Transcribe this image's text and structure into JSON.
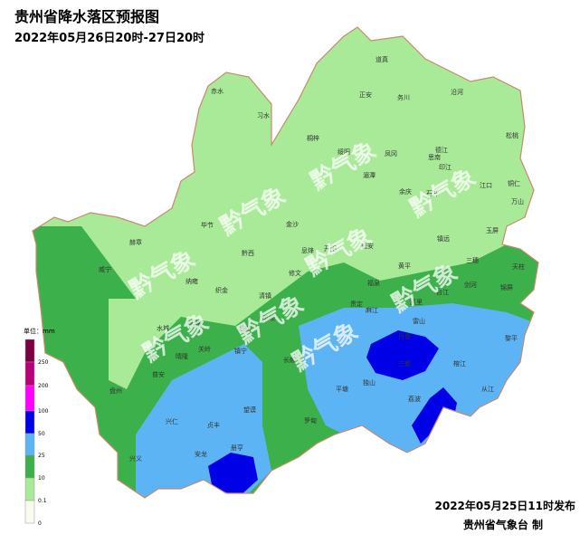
{
  "header": {
    "title": "贵州省降水落区预报图",
    "subtitle": "2022年05月26日20时-27日20时"
  },
  "watermark": "黔气象",
  "legend": {
    "unit": "单位：mm",
    "levels": [
      {
        "label": "250",
        "color": "#7a0040"
      },
      {
        "label": "200",
        "color": "#b8007a"
      },
      {
        "label": "100",
        "color": "#ff00ff"
      },
      {
        "label": "50",
        "color": "#0000e6"
      },
      {
        "label": "25",
        "color": "#5cb4f5"
      },
      {
        "label": "10",
        "color": "#3cb04a"
      },
      {
        "label": "0.1",
        "color": "#a8ea98"
      },
      {
        "label": "0",
        "color": "#fafbee"
      }
    ]
  },
  "counties": [
    "道真",
    "正安",
    "务川",
    "沿河",
    "习水",
    "赤水",
    "桐梓",
    "绥阳",
    "凤冈",
    "德江",
    "印江",
    "松桃",
    "湄潭",
    "思南",
    "余庆",
    "石阡",
    "江口",
    "铜仁",
    "万山",
    "玉屏",
    "毕节",
    "金沙",
    "黔西",
    "赫章",
    "威宁",
    "纳雍",
    "织金",
    "开阳",
    "息烽",
    "修文",
    "瓮安",
    "福泉",
    "黄平",
    "镇远",
    "三穗",
    "天柱",
    "清镇",
    "平坝",
    "贵定",
    "麻江",
    "凯里",
    "台江",
    "剑河",
    "锦屏",
    "雷山",
    "黎平",
    "丹寨",
    "三都",
    "榕江",
    "从江",
    "独山",
    "荔波",
    "平塘",
    "罗甸",
    "长顺",
    "镇宁",
    "关岭",
    "普定",
    "六枝",
    "水城",
    "晴隆",
    "普安",
    "盘州",
    "兴仁",
    "贞丰",
    "安龙",
    "兴义",
    "册亨",
    "望谟"
  ],
  "footer": {
    "issued": "2022年05月25日11时发布",
    "agency": "贵州省气象台 制"
  }
}
